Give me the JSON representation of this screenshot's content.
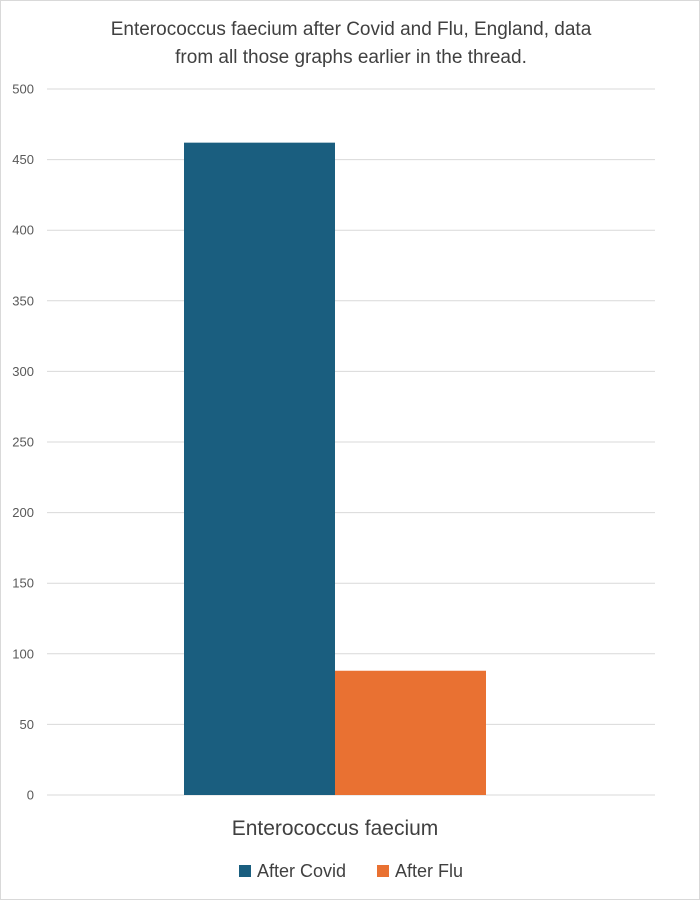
{
  "chart_data": {
    "type": "bar",
    "title_lines": [
      "Enterococcus faecium after Covid and Flu, England, data",
      "from all those graphs earlier in the thread."
    ],
    "categories": [
      "Enterococcus faecium"
    ],
    "series": [
      {
        "name": "After Covid",
        "values": [
          462
        ],
        "color": "#1a5e7f"
      },
      {
        "name": "After Flu",
        "values": [
          88
        ],
        "color": "#e97132"
      }
    ],
    "ylim": [
      0,
      500
    ],
    "y_ticks": [
      "0",
      "50",
      "100",
      "150",
      "200",
      "250",
      "300",
      "350",
      "400",
      "450",
      "500"
    ],
    "grid": true,
    "legend_position": "bottom",
    "gridline_color": "#d9d9d9"
  }
}
